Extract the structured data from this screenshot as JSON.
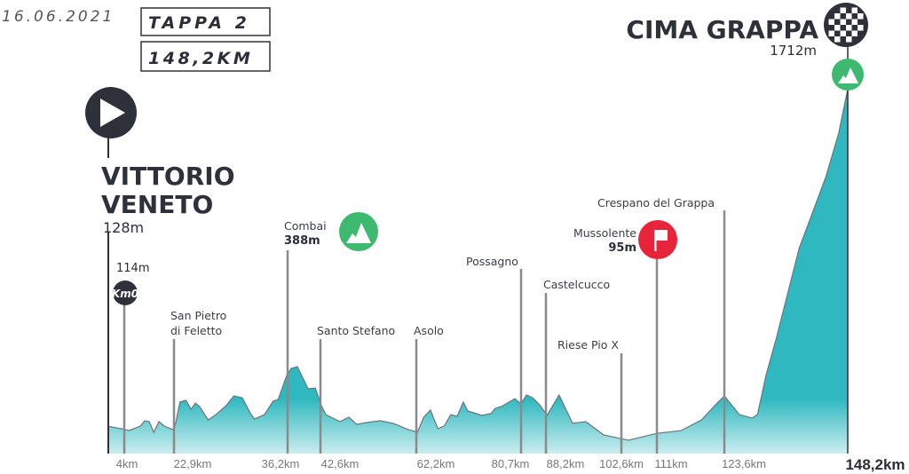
{
  "header": {
    "date": "16.06.2021",
    "stage": "TAPPA 2",
    "distance": "148,2KM"
  },
  "start": {
    "name_line1": "VITTORIO",
    "name_line2": "VENETO",
    "altitude": "128m",
    "icon": "play-icon"
  },
  "finish": {
    "name": "CIMA GRAPPA",
    "altitude": "1712m",
    "icon": "checkered-flag-icon",
    "climb_icon": "mountain-icon"
  },
  "km0": {
    "label": "Km0",
    "altitude": "114m"
  },
  "places": {
    "san_pietro_1": "San Pietro",
    "san_pietro_2": "di Feletto",
    "combai": "Combai",
    "combai_alt": "388m",
    "santo_stefano": "Santo Stefano",
    "asolo": "Asolo",
    "possagno": "Possagno",
    "castelcucco": "Castelcucco",
    "riese": "Riese Pio X",
    "crespano": "Crespano del Grappa",
    "mussolente": "Mussolente",
    "mussolente_alt": "95m"
  },
  "colors": {
    "profile": "#2fb8bf",
    "dark": "#2e313a",
    "climb": "#3dba6f",
    "sprint": "#e8243a",
    "marker_line": "#8a8a8a"
  },
  "chart_data": {
    "type": "area",
    "xlabel": "",
    "ylabel": "",
    "ylim": [
      0,
      1712
    ],
    "xlim": [
      0,
      148.2
    ],
    "km_markers": [
      {
        "km": 4,
        "label": "4km"
      },
      {
        "km": 22.9,
        "label": "22,9km"
      },
      {
        "km": 36.2,
        "label": "36,2km"
      },
      {
        "km": 42.6,
        "label": "42,6km"
      },
      {
        "km": 62.2,
        "label": "62,2km"
      },
      {
        "km": 80.7,
        "label": "80,7km"
      },
      {
        "km": 88.2,
        "label": "88,2km"
      },
      {
        "km": 102.6,
        "label": "102,6km"
      },
      {
        "km": 111,
        "label": "111km"
      },
      {
        "km": 123.6,
        "label": "123,6km"
      },
      {
        "km": 148.2,
        "label": "148,2km"
      }
    ],
    "profile": [
      [
        0,
        128
      ],
      [
        4,
        114
      ],
      [
        5.7,
        108
      ],
      [
        10.1,
        129
      ],
      [
        11.8,
        154
      ],
      [
        13.5,
        150
      ],
      [
        15.2,
        100
      ],
      [
        17.2,
        150
      ],
      [
        19.2,
        129
      ],
      [
        22.6,
        112
      ],
      [
        23.1,
        142
      ],
      [
        23.6,
        242
      ],
      [
        24.3,
        250
      ],
      [
        24.9,
        208
      ],
      [
        25.4,
        237
      ],
      [
        25.9,
        221
      ],
      [
        26.9,
        158
      ],
      [
        27.8,
        183
      ],
      [
        29.0,
        225
      ],
      [
        29.9,
        271
      ],
      [
        30.9,
        262
      ],
      [
        31.8,
        192
      ],
      [
        32.3,
        162
      ],
      [
        33.5,
        183
      ],
      [
        34.5,
        246
      ],
      [
        35.1,
        254
      ],
      [
        36.1,
        367
      ],
      [
        36.9,
        400
      ],
      [
        38.1,
        408
      ],
      [
        40.2,
        304
      ],
      [
        41.6,
        308
      ],
      [
        42.8,
        225
      ],
      [
        43.7,
        183
      ],
      [
        46.6,
        150
      ],
      [
        48.4,
        171
      ],
      [
        50.0,
        137
      ],
      [
        52.0,
        146
      ],
      [
        54.8,
        154
      ],
      [
        57.5,
        142
      ],
      [
        60.6,
        112
      ],
      [
        62.4,
        100
      ],
      [
        63.5,
        171
      ],
      [
        64.7,
        204
      ],
      [
        66.0,
        117
      ],
      [
        67.1,
        129
      ],
      [
        68.3,
        183
      ],
      [
        69.4,
        175
      ],
      [
        70.5,
        242
      ],
      [
        71.3,
        200
      ],
      [
        73.8,
        179
      ],
      [
        75.4,
        188
      ],
      [
        76.1,
        212
      ],
      [
        77.2,
        221
      ],
      [
        79.6,
        258
      ],
      [
        80.7,
        233
      ],
      [
        82.3,
        275
      ],
      [
        84.2,
        262
      ],
      [
        86.3,
        229
      ],
      [
        88.4,
        179
      ],
      [
        90.7,
        275
      ],
      [
        93.3,
        142
      ],
      [
        95.8,
        150
      ],
      [
        99.2,
        88
      ],
      [
        104.3,
        63
      ],
      [
        111,
        95
      ],
      [
        115.5,
        108
      ],
      [
        119.3,
        158
      ],
      [
        122.1,
        233
      ],
      [
        123.6,
        271
      ],
      [
        126.6,
        183
      ],
      [
        129.1,
        167
      ],
      [
        130.2,
        183
      ],
      [
        131.9,
        367
      ],
      [
        134.0,
        546
      ],
      [
        138.5,
        963
      ],
      [
        143.8,
        1296
      ],
      [
        146.4,
        1504
      ],
      [
        148.2,
        1712
      ]
    ]
  }
}
